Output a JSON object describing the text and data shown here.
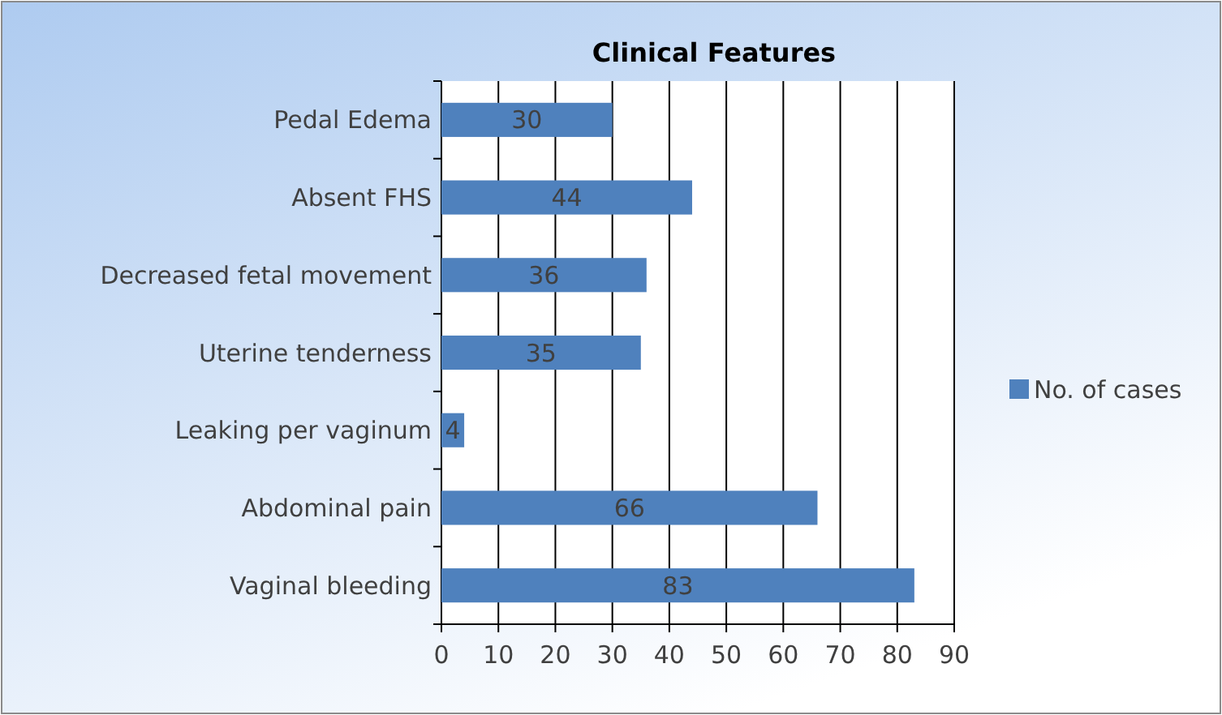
{
  "chart_data": {
    "type": "bar",
    "orientation": "horizontal",
    "title": "Clinical Features",
    "categories": [
      "Pedal Edema",
      "Absent FHS",
      "Decreased fetal movement",
      "Uterine tenderness",
      "Leaking per vaginum",
      "Abdominal pain",
      "Vaginal bleeding"
    ],
    "series": [
      {
        "name": "No. of cases",
        "color": "#4f81bd",
        "values": [
          30,
          44,
          36,
          35,
          4,
          66,
          83
        ]
      }
    ],
    "xlim": [
      0,
      90
    ],
    "xticks": [
      0,
      10,
      20,
      30,
      40,
      50,
      60,
      70,
      80,
      90
    ],
    "grid": "x",
    "legend": "right",
    "data_labels": true
  }
}
